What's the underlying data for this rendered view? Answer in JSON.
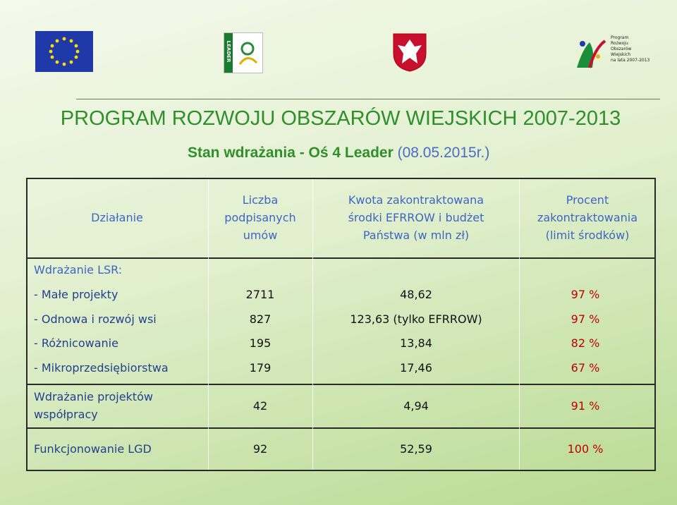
{
  "logos": {
    "leader": "LEADER",
    "prow": [
      "Program",
      "Rozwoju",
      "Obszarów",
      "Wiejskich",
      "na lata 2007-2013"
    ]
  },
  "header": {
    "title": "PROGRAM ROZWOJU OBSZARÓW WIEJSKICH 2007-2013",
    "subtitle": "Stan wdrażania - Oś 4 Leader",
    "date": "(08.05.2015r.)"
  },
  "table": {
    "columns": [
      [
        "Działanie"
      ],
      [
        "Liczba",
        "podpisanych",
        "umów"
      ],
      [
        "Kwota zakontraktowana",
        "środki EFRROW i budżet",
        "Państwa (w mln zł)"
      ],
      [
        "Procent",
        "zakontraktowania",
        "(limit środków)"
      ]
    ],
    "group_label": "Wdrażanie LSR:",
    "group_rows": [
      [
        "-  Małe projekty",
        "2711",
        "48,62",
        "97 %"
      ],
      [
        "- Odnowa i rozwój wsi",
        "827",
        "123,63  (tylko EFRROW)",
        "97 %"
      ],
      [
        "- Różnicowanie",
        "195",
        "13,84",
        "82 %"
      ],
      [
        "- Mikroprzedsiębiorstwa",
        "179",
        "17,46",
        "67 %"
      ]
    ],
    "cooperation": {
      "label": [
        "Wdrażanie projektów",
        "współpracy"
      ],
      "cells": [
        "42",
        "4,94",
        "91 %"
      ]
    },
    "lgd": [
      "Funkcjonowanie LGD",
      "92",
      "52,59",
      "100 %"
    ]
  }
}
